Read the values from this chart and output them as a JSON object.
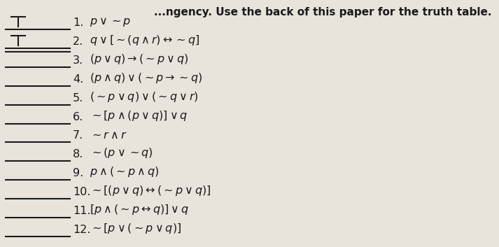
{
  "header": "...ngency. Use the back of this paper for the truth table.",
  "background_color": "#e8e4dc",
  "text_color": "#1a1a1a",
  "items": [
    {
      "num": "1.",
      "formula": "$p \\vee {\\sim}p$",
      "marker": "T1",
      "blank_lines": 1
    },
    {
      "num": "2.",
      "formula": "$q \\vee [{\\sim}(q \\wedge r) \\leftrightarrow {\\sim}q]$",
      "marker": "T2",
      "blank_lines": 2
    },
    {
      "num": "3.",
      "formula": "$(p \\vee q) \\rightarrow ({\\sim}p \\vee q)$",
      "marker": "",
      "blank_lines": 1
    },
    {
      "num": "4.",
      "formula": "$(p \\wedge q) \\vee ({\\sim}p \\rightarrow {\\sim}q)$",
      "marker": "",
      "blank_lines": 1
    },
    {
      "num": "5.",
      "formula": "$({\\sim}p \\vee q) \\vee ({\\sim}q \\vee r)$",
      "marker": "",
      "blank_lines": 1
    },
    {
      "num": "6.",
      "formula": "${\\sim}[p \\wedge (p \\vee q)] \\vee q$",
      "marker": "",
      "blank_lines": 1
    },
    {
      "num": "7.",
      "formula": "${\\sim}r \\wedge r$",
      "marker": "",
      "blank_lines": 1
    },
    {
      "num": "8.",
      "formula": "${\\sim}(p \\vee {\\sim}q)$",
      "marker": "",
      "blank_lines": 1
    },
    {
      "num": "9.",
      "formula": "$p \\wedge ({\\sim}p \\wedge q)$",
      "marker": "",
      "blank_lines": 1
    },
    {
      "num": "10.",
      "formula": "${\\sim}[(p \\vee q) \\leftrightarrow ({\\sim}p \\vee q)]$",
      "marker": "",
      "blank_lines": 1
    },
    {
      "num": "11.",
      "formula": "$[p \\wedge ({\\sim}p \\leftrightarrow q)] \\vee q$",
      "marker": "",
      "blank_lines": 1
    },
    {
      "num": "12.",
      "formula": "${\\sim}[p \\vee ({\\sim}p \\vee q)]$",
      "marker": "",
      "blank_lines": 1
    }
  ],
  "line_color": "#1a1a1a",
  "font_size": 11.5,
  "header_font_size": 11
}
